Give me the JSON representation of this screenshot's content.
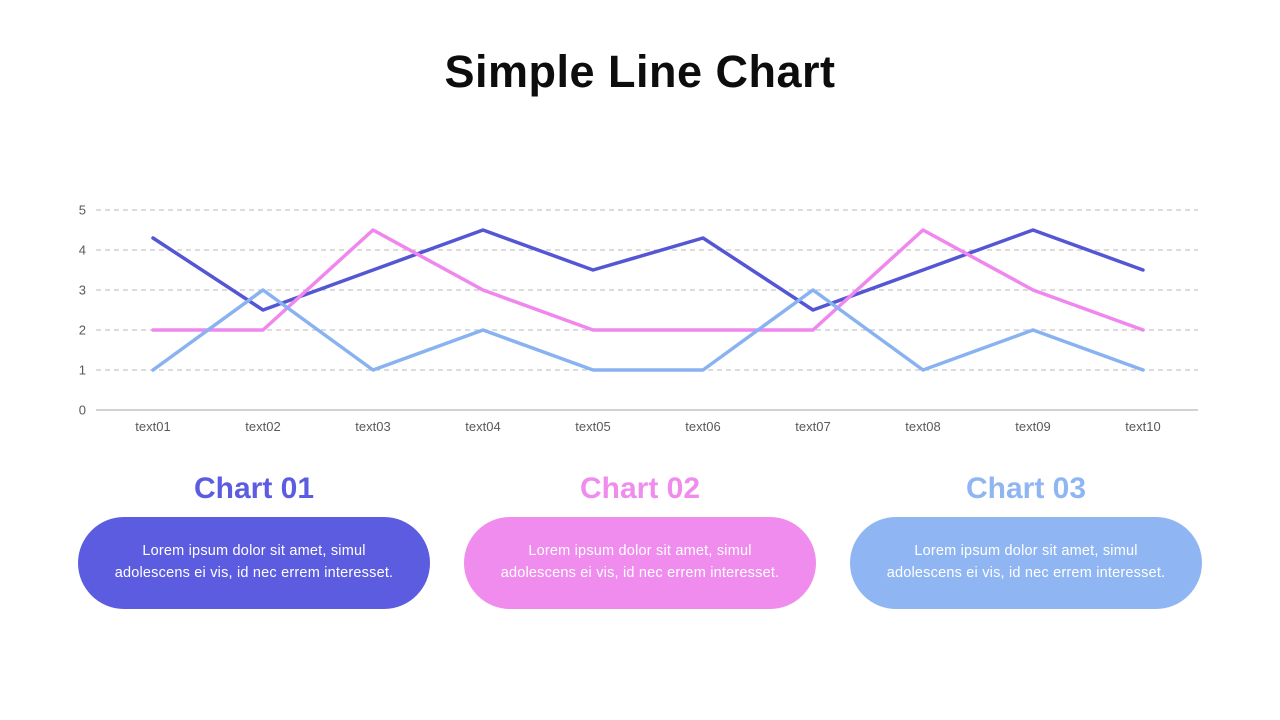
{
  "title": "Simple Line Chart",
  "chart_data": {
    "type": "line",
    "categories": [
      "text01",
      "text02",
      "text03",
      "text04",
      "text05",
      "text06",
      "text07",
      "text08",
      "text09",
      "text10"
    ],
    "series": [
      {
        "name": "Chart 01",
        "color": "#5456D4",
        "values": [
          4.3,
          2.5,
          3.5,
          4.5,
          3.5,
          4.3,
          2.5,
          3.5,
          4.5,
          3.5
        ]
      },
      {
        "name": "Chart 02",
        "color": "#EF87EE",
        "values": [
          2,
          2,
          4.5,
          3,
          2,
          2,
          2,
          4.5,
          3,
          2
        ]
      },
      {
        "name": "Chart 03",
        "color": "#89B2F0",
        "values": [
          1,
          3,
          1,
          2,
          1,
          1,
          3,
          1,
          2,
          1
        ]
      }
    ],
    "title": "Simple Line Chart",
    "xlabel": "",
    "ylabel": "",
    "ylim": [
      0,
      5
    ],
    "yticks": [
      0,
      1,
      2,
      3,
      4,
      5
    ],
    "grid": "horizontal-dashed",
    "legend_position": "none",
    "axis_tick_color": "#595959",
    "gridline_color": "#b9b9b9",
    "baseline_color": "#a6a6a6"
  },
  "cards": [
    {
      "label": "Chart 01",
      "color": "#5C5CE1",
      "text": "Lorem ipsum dolor sit amet, simul adolescens ei vis, id nec errem interesset."
    },
    {
      "label": "Chart 02",
      "color": "#EF8CEE",
      "text": "Lorem ipsum dolor sit amet, simul adolescens ei vis, id nec errem interesset."
    },
    {
      "label": "Chart 03",
      "color": "#8FB6F2",
      "text": "Lorem ipsum dolor sit amet, simul adolescens ei vis, id nec errem interesset."
    }
  ]
}
